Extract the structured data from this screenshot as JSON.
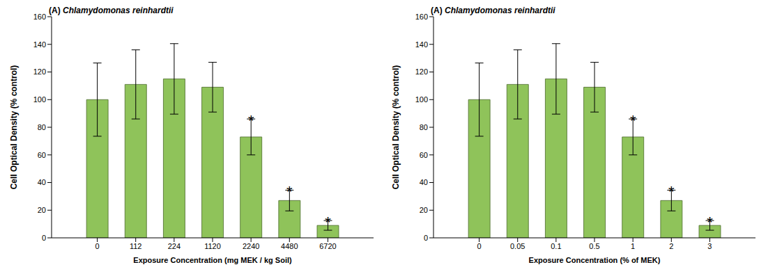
{
  "chart_data": [
    {
      "type": "bar",
      "title": "(A) Chlamydomonas reinhardtii",
      "x_label": "Exposure Concentration (mg MEK / kg Soil)",
      "y_label": "Cell Optical Density (% control)",
      "categories": [
        "0",
        "112",
        "224",
        "1120",
        "2240",
        "4480",
        "6720"
      ],
      "values": [
        100,
        111,
        115,
        109,
        73,
        27,
        9
      ],
      "errors": [
        26.5,
        25,
        25.5,
        18,
        13,
        7.5,
        3.5
      ],
      "significance": [
        null,
        null,
        null,
        null,
        "*",
        "*",
        "*"
      ],
      "color": "#8fc35a",
      "ylim": [
        0,
        160
      ],
      "yticks": [
        0,
        20,
        40,
        60,
        80,
        100,
        120,
        140,
        160
      ]
    },
    {
      "type": "bar",
      "title": "(A) Chlamydomonas reinhardtii",
      "x_label": "Exposure Concentration (% of MEK)",
      "y_label": "Cell Optical Density (% control)",
      "categories": [
        "0",
        "0.05",
        "0.1",
        "0.5",
        "1",
        "2",
        "3"
      ],
      "values": [
        100,
        111,
        115,
        109,
        73,
        27,
        9
      ],
      "errors": [
        26.5,
        25,
        25.5,
        18,
        13,
        7.5,
        3.5
      ],
      "significance": [
        null,
        null,
        null,
        null,
        "*",
        "*",
        "*"
      ],
      "color": "#8fc35a",
      "ylim": [
        0,
        160
      ],
      "yticks": [
        0,
        20,
        40,
        60,
        80,
        100,
        120,
        140,
        160
      ]
    }
  ]
}
